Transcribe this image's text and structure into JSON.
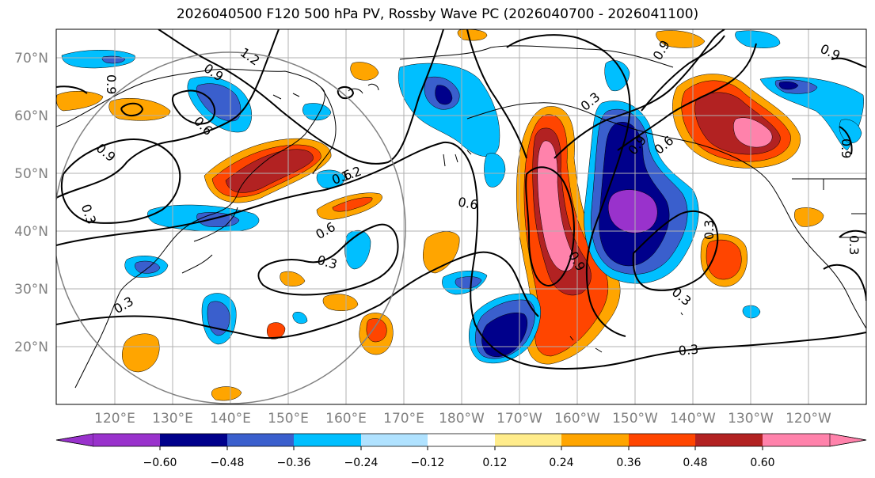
{
  "title": "2026040500 F120 500 hPa PV, Rossby Wave PC (2026040700 - 2026041100)",
  "lat_labels": [
    "70°N",
    "60°N",
    "50°N",
    "40°N",
    "30°N",
    "20°N"
  ],
  "lon_labels": [
    "120°E",
    "130°E",
    "140°E",
    "150°E",
    "160°E",
    "170°E",
    "180°W",
    "170°W",
    "160°W",
    "150°W",
    "140°W",
    "130°W",
    "120°W"
  ],
  "colorbar": {
    "colors": [
      "#9932cc",
      "#00008b",
      "#3a5fcd",
      "#00bfff",
      "#b0e2ff",
      "#ffffff",
      "#ffec8b",
      "#ffa500",
      "#ff4500",
      "#b22222",
      "#ff82ab"
    ],
    "tick_labels": [
      "−0.60",
      "−0.48",
      "−0.36",
      "−0.24",
      "−0.12",
      "0.12",
      "0.24",
      "0.36",
      "0.48",
      "0.60"
    ]
  },
  "contour_labels": [
    "1.2",
    "0.9",
    "0.9",
    "0.6",
    "0.9",
    "0.3",
    "0.6",
    "0.6",
    "0.3",
    "0.3",
    "0.6",
    "0.9",
    "0.3",
    "0.9",
    "0.6",
    "0.9",
    "0.9",
    "0.3",
    "0.3",
    "0.3",
    "0.9",
    "0.3",
    "1.2"
  ]
}
